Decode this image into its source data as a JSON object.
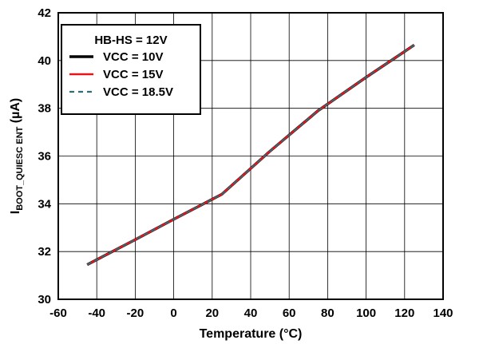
{
  "chart_data": {
    "type": "line",
    "title": "",
    "xlabel": "Temperature (°C)",
    "ylabel": {
      "main": "I",
      "sub": "BOOT_QUIESC ENT",
      "unit": " (µA)"
    },
    "xlim": [
      -60,
      140
    ],
    "ylim": [
      30,
      42
    ],
    "x_ticks": [
      -60,
      -40,
      -20,
      0,
      20,
      40,
      60,
      80,
      100,
      120,
      140
    ],
    "y_ticks": [
      30,
      32,
      34,
      36,
      38,
      40,
      42
    ],
    "grid": true,
    "legend": {
      "placement": "top-left",
      "title": "HB-HS = 12V"
    },
    "series": [
      {
        "name": "VCC = 10V",
        "color": "#000000",
        "style": "solid",
        "x": [
          -45,
          -20,
          0,
          25,
          50,
          75,
          100,
          125
        ],
        "y": [
          31.45,
          32.5,
          33.35,
          34.4,
          36.2,
          37.9,
          39.3,
          40.65
        ]
      },
      {
        "name": "VCC = 15V",
        "color": "#e8141c",
        "style": "solid",
        "x": [
          -45,
          -20,
          0,
          25,
          50,
          75,
          100,
          125
        ],
        "y": [
          31.45,
          32.5,
          33.35,
          34.4,
          36.2,
          37.9,
          39.3,
          40.65
        ]
      },
      {
        "name": "VCC = 18.5V",
        "color": "#2e6e74",
        "style": "dashed",
        "x": [
          -45,
          -20,
          0,
          25,
          50,
          75,
          100,
          125
        ],
        "y": [
          31.45,
          32.5,
          33.35,
          34.4,
          36.2,
          37.9,
          39.3,
          40.65
        ]
      }
    ]
  }
}
